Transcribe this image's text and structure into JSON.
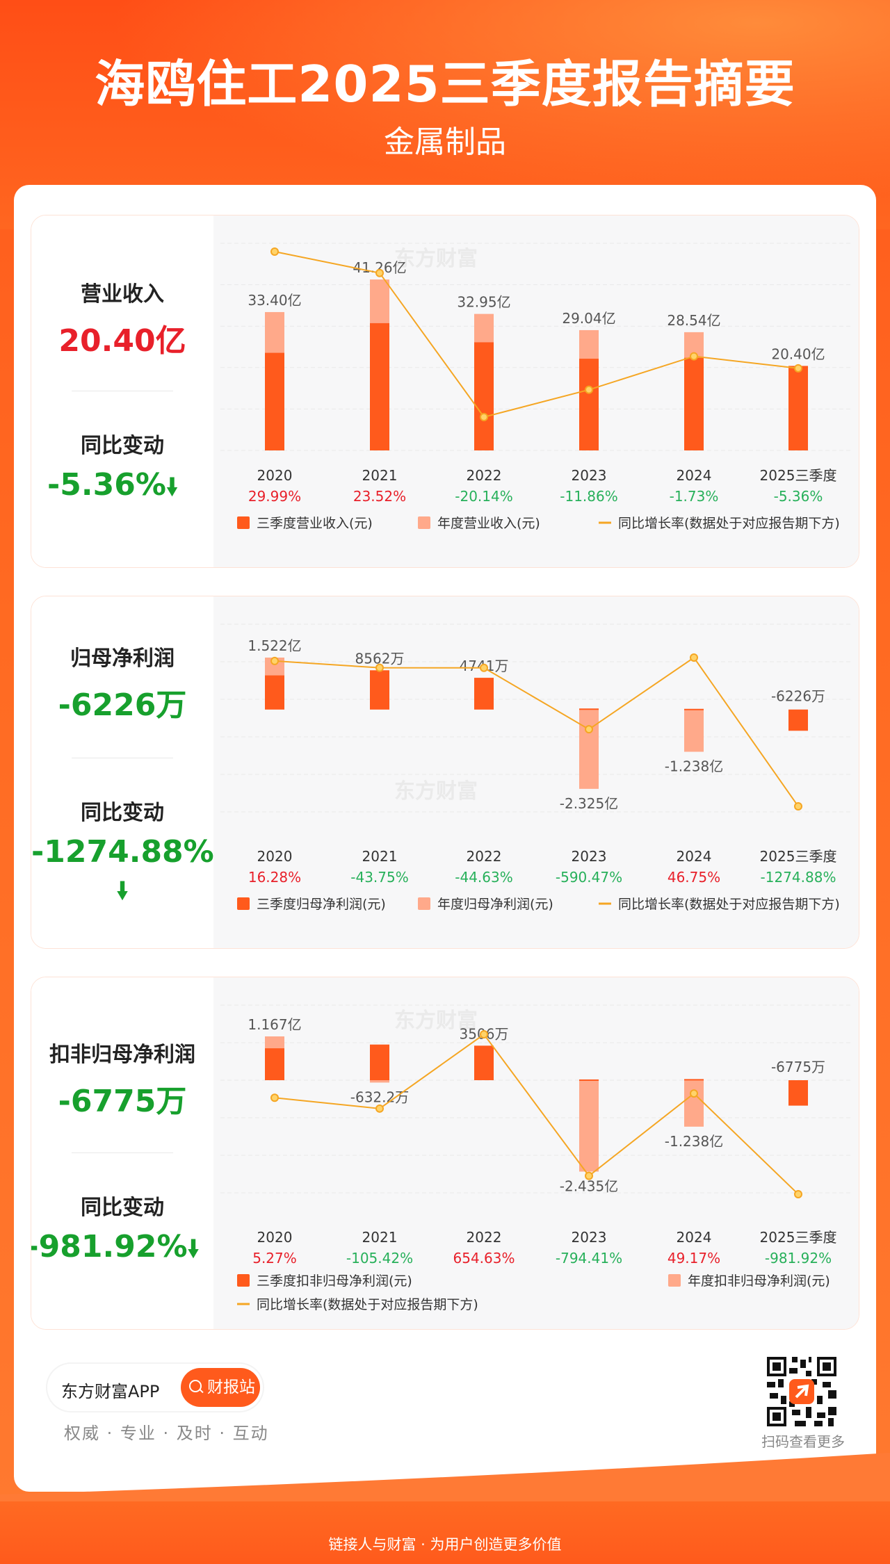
{
  "header": {
    "title": "海鸥住工2025三季度报告摘要",
    "subtitle": "金属制品"
  },
  "watermark": "东方财富",
  "colors": {
    "bar_q3": "#ff5a1c",
    "bar_year": "#ffa98a",
    "line": "#f5a623",
    "red": "#e8202a",
    "green": "#17a02d"
  },
  "sections": [
    {
      "label": "营业收入",
      "value": "20.40亿",
      "value_color": "red",
      "change_label": "同比变动",
      "change_value": "-5.36%",
      "change_color": "green",
      "arrow": "down"
    },
    {
      "label": "归母净利润",
      "value": "-6226万",
      "value_color": "green",
      "change_label": "同比变动",
      "change_value": "-1274.88%",
      "change_color": "green",
      "arrow": "down"
    },
    {
      "label": "扣非归母净利润",
      "value": "-6775万",
      "value_color": "green",
      "change_label": "同比变动",
      "change_value": "-981.92%",
      "change_color": "green",
      "arrow": "down"
    }
  ],
  "chart_data": [
    {
      "type": "bar",
      "categories": [
        "2020",
        "2021",
        "2022",
        "2023",
        "2024",
        "2025三季度"
      ],
      "unit": "亿",
      "series": [
        {
          "name": "三季度营业收入(元)",
          "values": [
            23.56,
            30.72,
            26.1,
            22.14,
            22.36,
            20.4
          ]
        },
        {
          "name": "年度营业收入(元)",
          "values": [
            33.4,
            41.26,
            32.95,
            29.04,
            28.54,
            null
          ]
        },
        {
          "name": "同比增长率(数据处于对应报告期下方)",
          "values": [
            29.99,
            23.52,
            -20.14,
            -11.86,
            -1.73,
            -5.36
          ]
        }
      ],
      "bar_labels": [
        "33.40亿",
        "41.26亿",
        "32.95亿",
        "29.04亿",
        "28.54亿",
        "20.40亿"
      ],
      "growth_labels": [
        "29.99%",
        "23.52%",
        "-20.14%",
        "-11.86%",
        "-1.73%",
        "-5.36%"
      ],
      "growth_colors": [
        "red",
        "red",
        "green",
        "green",
        "green",
        "green"
      ],
      "legend": [
        "三季度营业收入(元)",
        "年度营业收入(元)",
        "同比增长率(数据处于对应报告期下方)"
      ]
    },
    {
      "type": "bar",
      "categories": [
        "2020",
        "2021",
        "2022",
        "2023",
        "2024",
        "2025三季度"
      ],
      "unit": "亿",
      "series": [
        {
          "name": "三季度归母净利润(元)",
          "values": [
            1.0,
            1.15,
            0.93,
            0.03,
            0.02,
            -0.6226
          ]
        },
        {
          "name": "年度归母净利润(元)",
          "values": [
            1.522,
            0.8562,
            0.4741,
            -2.325,
            -1.238,
            null
          ]
        },
        {
          "name": "同比增长率(数据处于对应报告期下方)",
          "values": [
            16.28,
            -43.75,
            -44.63,
            -590.47,
            46.75,
            -1274.88
          ]
        }
      ],
      "bar_labels": [
        "1.522亿",
        "8562万",
        "4741万",
        "-2.325亿",
        "-1.238亿",
        "-6226万"
      ],
      "growth_labels": [
        "16.28%",
        "-43.75%",
        "-44.63%",
        "-590.47%",
        "46.75%",
        "-1274.88%"
      ],
      "growth_colors": [
        "red",
        "green",
        "green",
        "green",
        "red",
        "green"
      ],
      "legend": [
        "三季度归母净利润(元)",
        "年度归母净利润(元)",
        "同比增长率(数据处于对应报告期下方)"
      ]
    },
    {
      "type": "bar",
      "categories": [
        "2020",
        "2021",
        "2022",
        "2023",
        "2024",
        "2025三季度"
      ],
      "unit": "亿",
      "series": [
        {
          "name": "三季度扣非归母净利润(元)",
          "values": [
            0.85,
            0.95,
            0.92,
            0.02,
            0.03,
            -0.6775
          ]
        },
        {
          "name": "年度扣非归母净利润(元)",
          "values": [
            1.167,
            -0.06322,
            0.3506,
            -2.435,
            -1.238,
            null
          ]
        },
        {
          "name": "同比增长率(数据处于对应报告期下方)",
          "values": [
            5.27,
            -105.42,
            654.63,
            -794.41,
            49.17,
            -981.92
          ]
        }
      ],
      "bar_labels": [
        "1.167亿",
        "-632.2万",
        "3506万",
        "-2.435亿",
        "-1.238亿",
        "-6775万"
      ],
      "growth_labels": [
        "5.27%",
        "-105.42%",
        "654.63%",
        "-794.41%",
        "49.17%",
        "-981.92%"
      ],
      "growth_colors": [
        "red",
        "green",
        "red",
        "green",
        "red",
        "green"
      ],
      "legend": [
        "三季度扣非归母净利润(元)",
        "年度扣非归母净利润(元)",
        "同比增长率(数据处于对应报告期下方)"
      ]
    }
  ],
  "footer": {
    "app_name": "东方财富APP",
    "button_label": "财报站",
    "slogan": "权威 · 专业 · 及时 · 互动",
    "qr_caption": "扫码查看更多",
    "bottom_text": "链接人与财富 · 为用户创造更多价值"
  }
}
